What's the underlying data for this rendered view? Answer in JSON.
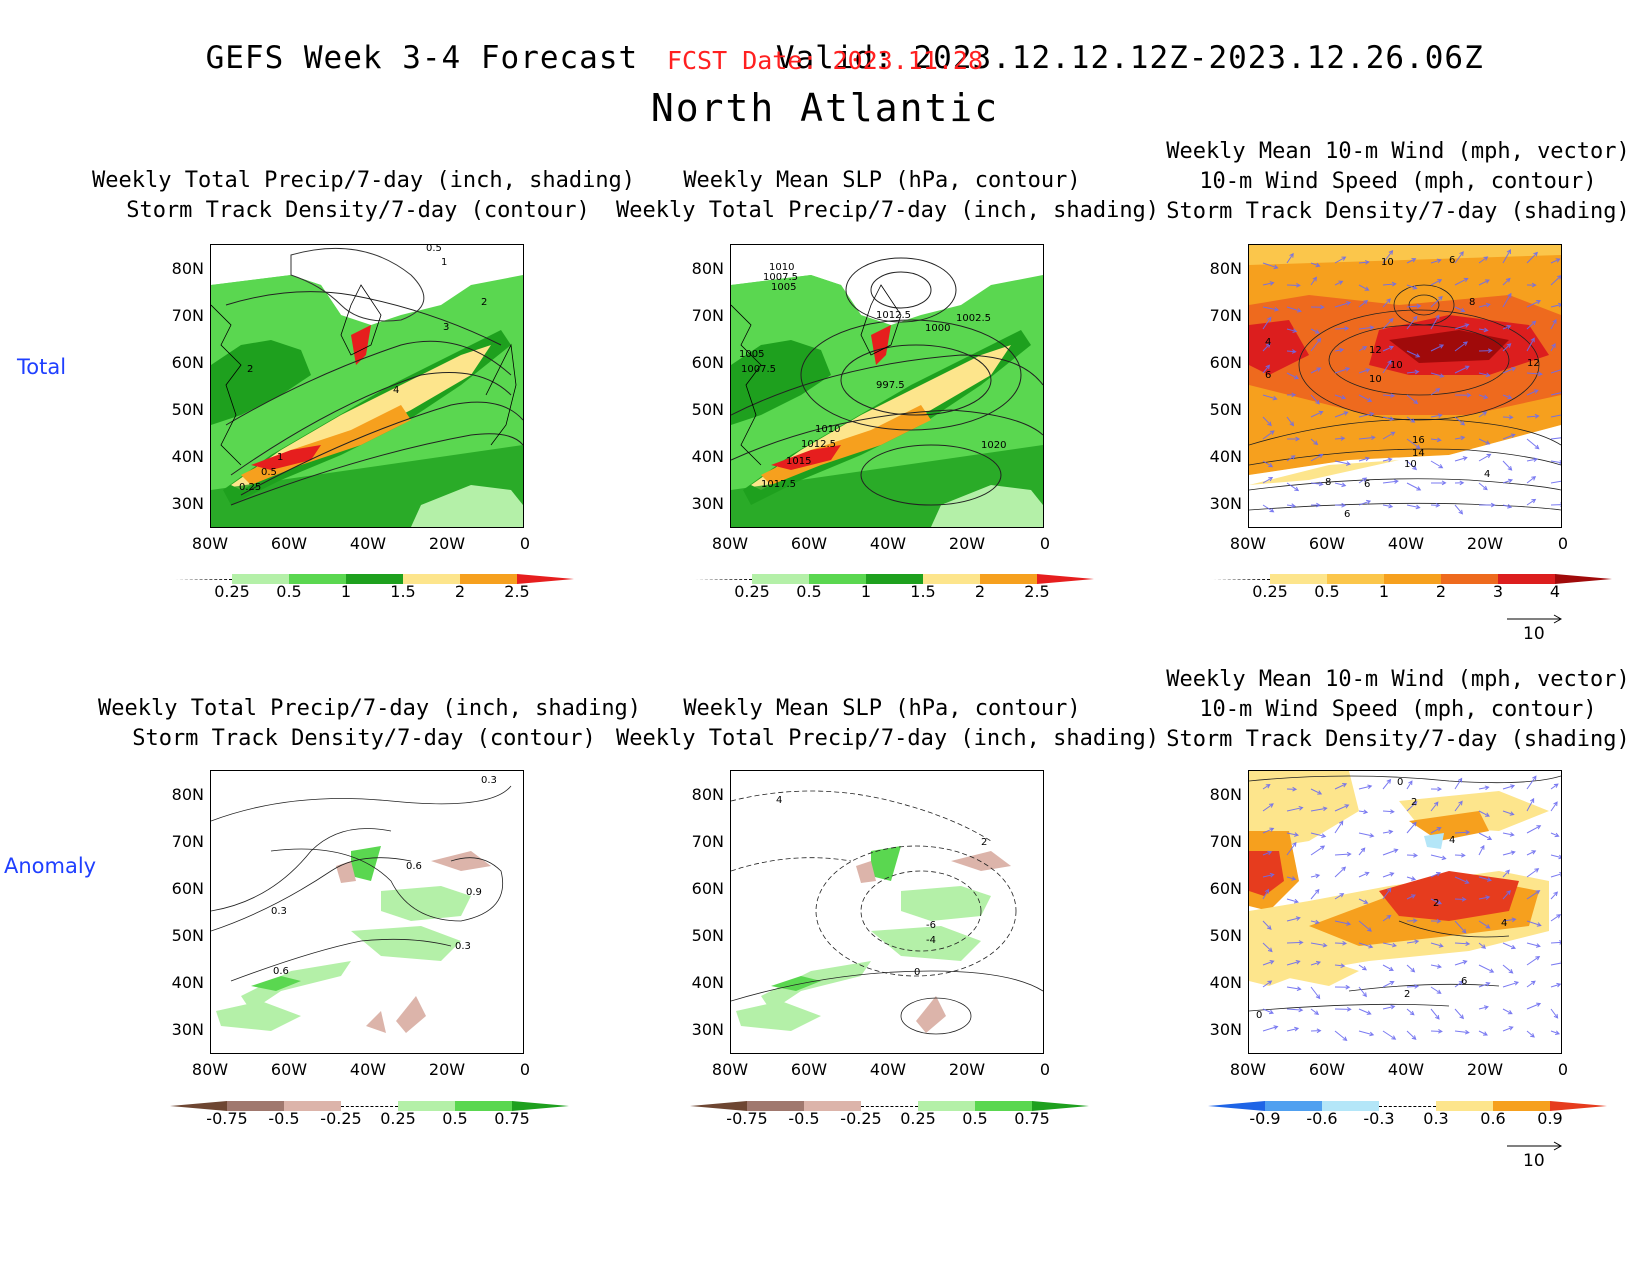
{
  "header": {
    "title_left": "GEFS Week 3-4 Forecast",
    "title_right": "Valid: 2023.12.12.12Z-2023.12.26.06Z",
    "fcst_date": "FCST Date: 2023.11.28",
    "region": "North Atlantic"
  },
  "row_labels": {
    "total": "Total",
    "anomaly": "Anomaly"
  },
  "panel_titles": {
    "precip_storm": [
      "Weekly Total Precip/7-day (inch, shading)",
      "Storm Track Density/7-day (contour)"
    ],
    "slp_precip": [
      "Weekly Mean SLP (hPa, contour)",
      "Weekly Total Precip/7-day (inch, shading)"
    ],
    "wind_storm": [
      "Weekly Mean 10-m Wind (mph, vector)",
      "10-m Wind Speed (mph, contour)",
      "Storm Track Density/7-day (shading)"
    ]
  },
  "axes": {
    "lat_labels": [
      "80N",
      "70N",
      "60N",
      "50N",
      "40N",
      "30N"
    ],
    "lon_labels": [
      "80W",
      "60W",
      "40W",
      "20W",
      "0"
    ]
  },
  "colorbars": {
    "precip_total": {
      "labels": [
        "0.25",
        "0.5",
        "1",
        "1.5",
        "2",
        "2.5"
      ],
      "colors": [
        "#ffffff",
        "#b4f0a8",
        "#5ad750",
        "#1ea01e",
        "#fde58c",
        "#f6a01e",
        "#e61e1e"
      ]
    },
    "storm_total": {
      "labels": [
        "0.25",
        "0.5",
        "1",
        "2",
        "3",
        "4"
      ],
      "colors": [
        "#ffffff",
        "#fde58c",
        "#fbc64b",
        "#f6a01e",
        "#ee6a1e",
        "#dc1e1e",
        "#a00a0a"
      ]
    },
    "precip_anom": {
      "labels": [
        "-0.75",
        "-0.5",
        "-0.25",
        "0.25",
        "0.5",
        "0.75"
      ],
      "colors": [
        "#6e4632",
        "#a0786e",
        "#dcb4aa",
        "#ffffff",
        "#b4f0a8",
        "#5ad750",
        "#1ea01e"
      ]
    },
    "storm_anom": {
      "labels": [
        "-0.9",
        "-0.6",
        "-0.3",
        "0.3",
        "0.6",
        "0.9"
      ],
      "colors": [
        "#1e64e6",
        "#50a0f0",
        "#b4e6f8",
        "#ffffff",
        "#fde58c",
        "#f6a01e",
        "#e63c1e"
      ]
    }
  },
  "vector_reference": "10",
  "contour_labels": {
    "p1": [
      "0.5",
      "1",
      "2",
      "3",
      "2",
      "4",
      "1",
      "0.5",
      "0.25"
    ],
    "p2": [
      "1010",
      "1007.5",
      "1005",
      "1012.5",
      "1002.5",
      "1000",
      "1005",
      "1007.5",
      "997.5",
      "1010",
      "1012.5",
      "1015",
      "1017.5",
      "1020"
    ],
    "p3": [
      "10",
      "6",
      "8",
      "4",
      "12",
      "10",
      "10",
      "6",
      "12",
      "16",
      "14",
      "10",
      "8",
      "6",
      "6",
      "4"
    ],
    "p4": [
      "0.3",
      "0.6",
      "0.9",
      "0.3",
      "0.3",
      "0.6"
    ],
    "p5": [
      "4",
      "2",
      "-6",
      "-4",
      "0"
    ],
    "p6": [
      "0",
      "2",
      "4",
      "2",
      "4",
      "6",
      "2",
      "0"
    ]
  }
}
